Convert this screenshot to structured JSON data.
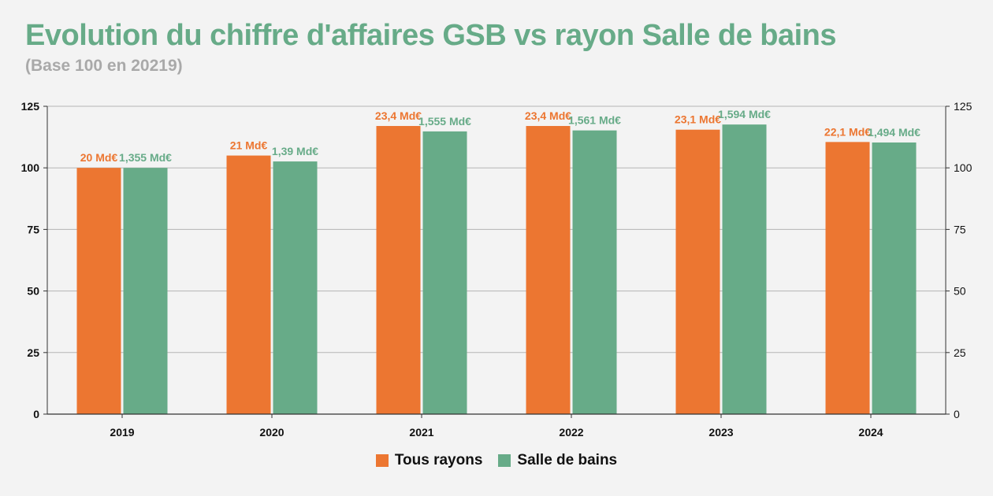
{
  "title": "Evolution du chiffre d'affaires GSB vs rayon Salle de bains",
  "subtitle": "(Base 100 en 20219)",
  "colors": {
    "tous_rayons": "#ec7631",
    "salle_de_bains": "#67ab88",
    "grid": "#b5b5b5",
    "axis": "#333333"
  },
  "chart_data": {
    "type": "bar",
    "categories": [
      "2019",
      "2020",
      "2021",
      "2022",
      "2023",
      "2024"
    ],
    "series": [
      {
        "name": "Tous rayons",
        "values": [
          100,
          105,
          117,
          117,
          115.5,
          110.5
        ],
        "labels": [
          "20 Md€",
          "21 Md€",
          "23,4 Md€",
          "23,4 Md€",
          "23,1 Md€",
          "22,1 Md€"
        ]
      },
      {
        "name": "Salle de bains",
        "values": [
          100,
          102.6,
          114.8,
          115.2,
          117.6,
          110.3
        ],
        "labels": [
          "1,355 Md€",
          "1,39 Md€",
          "1,555 Md€",
          "1,561 Md€",
          "1,594 Md€",
          "1,494 Md€"
        ]
      }
    ],
    "ylim": [
      0,
      125
    ],
    "yticks": [
      0,
      25,
      50,
      75,
      100,
      125
    ],
    "secondary_y": true,
    "grid": true,
    "legend_position": "bottom-center"
  }
}
